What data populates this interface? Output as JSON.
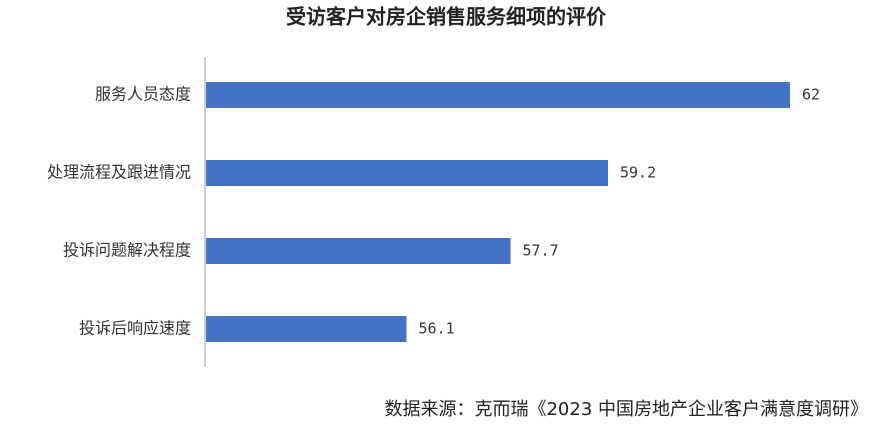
{
  "chart_data": {
    "type": "bar",
    "orientation": "horizontal",
    "title": "受访客户对房企销售服务细项的评价",
    "categories": [
      "服务人员态度",
      "处理流程及跟进情况",
      "投诉问题解决程度",
      "投诉后响应速度"
    ],
    "values": [
      62,
      59.2,
      57.7,
      56.1
    ],
    "color": "#4472c4",
    "xlim": [
      53,
      62
    ],
    "source": "数据来源：克而瑞《2023 中国房地产企业客户满意度调研》"
  }
}
